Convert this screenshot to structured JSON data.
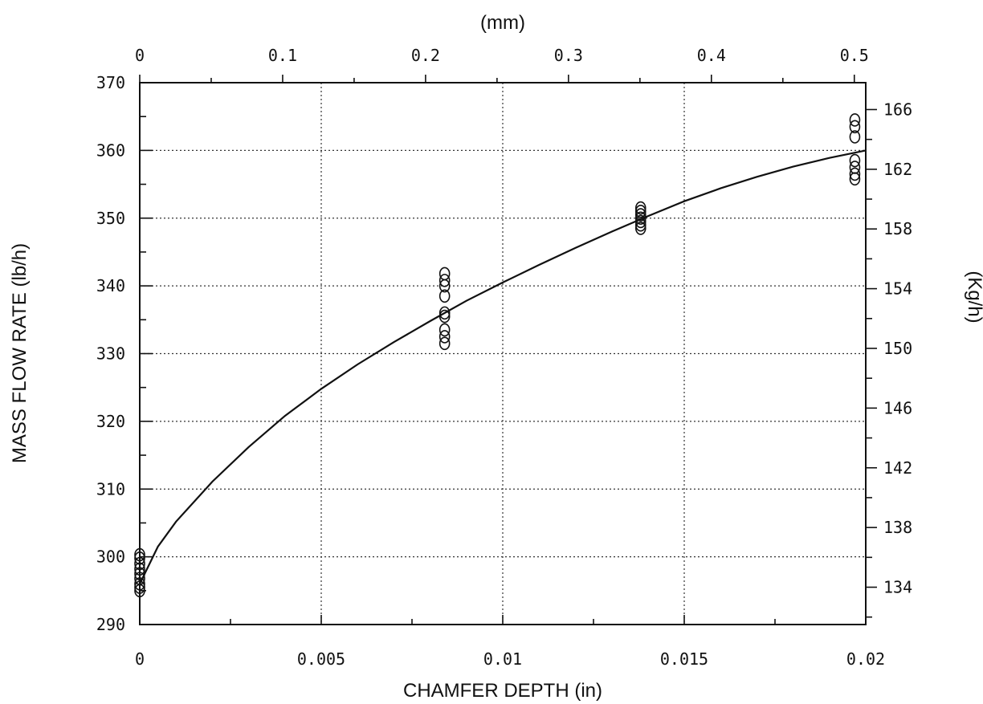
{
  "chart_data": {
    "type": "scatter",
    "title": "",
    "xlabel": "CHAMFER DEPTH (in)",
    "ylabel": "MASS FLOW RATE (lb/h)",
    "x2label": "(mm)",
    "y2label": "(Kg/h)",
    "xlim": [
      0,
      0.02
    ],
    "ylim": [
      290,
      370
    ],
    "x2lim": [
      0,
      0.508
    ],
    "y2lim": [
      131.5,
      167.8
    ],
    "xticks": [
      0,
      0.005,
      0.01,
      0.015,
      0.02
    ],
    "xtick_labels": [
      "0",
      "0.005",
      "0.01",
      "0.015",
      "0.02"
    ],
    "yticks": [
      290,
      300,
      310,
      320,
      330,
      340,
      350,
      360,
      370
    ],
    "ytick_labels": [
      "290",
      "300",
      "310",
      "320",
      "330",
      "340",
      "350",
      "360",
      "370"
    ],
    "x2ticks": [
      0,
      0.1,
      0.2,
      0.3,
      0.4,
      0.5
    ],
    "x2tick_labels": [
      "0",
      "0.1",
      "0.2",
      "0.3",
      "0.4",
      "0.5"
    ],
    "y2ticks": [
      134,
      138,
      142,
      146,
      150,
      154,
      158,
      162,
      166
    ],
    "y2tick_labels": [
      "134",
      "138",
      "142",
      "146",
      "150",
      "154",
      "158",
      "162",
      "166"
    ],
    "grid": true,
    "series": [
      {
        "kind": "scatter",
        "marker": "open-circle",
        "points": [
          [
            0,
            295
          ],
          [
            0,
            295.5
          ],
          [
            0,
            296
          ],
          [
            0,
            296.8
          ],
          [
            0,
            297.5
          ],
          [
            0,
            298.2
          ],
          [
            0,
            299
          ],
          [
            0,
            299.8
          ],
          [
            0,
            300.3
          ],
          [
            0.0084,
            331.5
          ],
          [
            0.0084,
            332.5
          ],
          [
            0.0084,
            333.5
          ],
          [
            0.0084,
            335.5
          ],
          [
            0.0084,
            336
          ],
          [
            0.0084,
            338.5
          ],
          [
            0.0084,
            340
          ],
          [
            0.0084,
            340.8
          ],
          [
            0.0084,
            341.8
          ],
          [
            0.0138,
            348.5
          ],
          [
            0.0138,
            349
          ],
          [
            0.0138,
            349.5
          ],
          [
            0.0138,
            350
          ],
          [
            0.0138,
            350.5
          ],
          [
            0.0138,
            351
          ],
          [
            0.0138,
            351.5
          ],
          [
            0.0197,
            355.8
          ],
          [
            0.0197,
            356.5
          ],
          [
            0.0197,
            357.5
          ],
          [
            0.0197,
            358.5
          ],
          [
            0.0197,
            362
          ],
          [
            0.0197,
            363.5
          ],
          [
            0.0197,
            364.5
          ]
        ]
      },
      {
        "kind": "line",
        "style": "smooth-fit",
        "points": [
          [
            0,
            296
          ],
          [
            0.0005,
            301.5
          ],
          [
            0.001,
            305.2
          ],
          [
            0.002,
            311.1
          ],
          [
            0.003,
            316.2
          ],
          [
            0.004,
            320.8
          ],
          [
            0.005,
            324.8
          ],
          [
            0.006,
            328.4
          ],
          [
            0.007,
            331.7
          ],
          [
            0.008,
            334.8
          ],
          [
            0.009,
            337.8
          ],
          [
            0.01,
            340.5
          ],
          [
            0.011,
            343.1
          ],
          [
            0.012,
            345.6
          ],
          [
            0.013,
            348.0
          ],
          [
            0.014,
            350.3
          ],
          [
            0.015,
            352.5
          ],
          [
            0.016,
            354.4
          ],
          [
            0.017,
            356.1
          ],
          [
            0.018,
            357.6
          ],
          [
            0.019,
            358.9
          ],
          [
            0.02,
            360
          ]
        ]
      }
    ]
  }
}
